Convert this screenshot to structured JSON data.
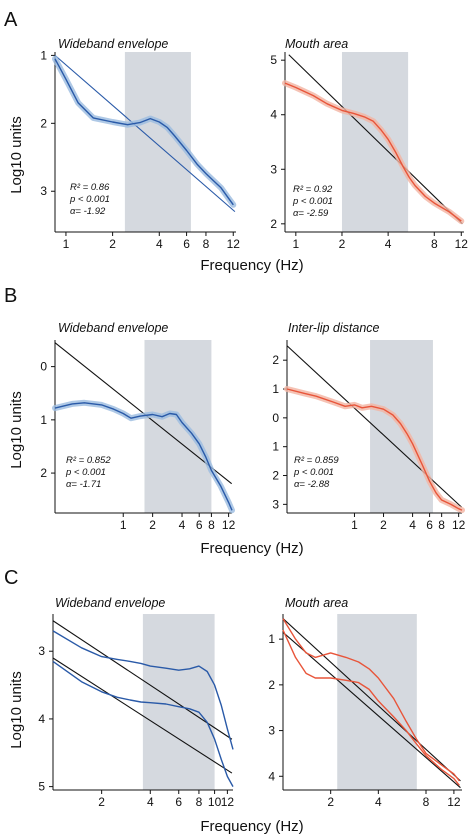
{
  "colors": {
    "blue": "#2a5aa8",
    "blue_band": "#9bbbe0",
    "red": "#e8553a",
    "red_band": "#f3b4a3",
    "fit": "#111111",
    "shade": "#d5d9df"
  },
  "xlabel": "Frequency (Hz)",
  "ylabel": "Log10 units",
  "chart_data": [
    {
      "panel": "A",
      "side": "left",
      "type": "line",
      "title": "Wideband envelope",
      "color": "blue",
      "x_log": true,
      "xlim": [
        0.85,
        12.5
      ],
      "ylim": [
        0.95,
        3.6
      ],
      "y_inverted": true,
      "xticks": [
        1,
        2,
        4,
        6,
        8,
        12
      ],
      "yticks": [
        1,
        2,
        3
      ],
      "shaded_band_hz": [
        2.4,
        6.4
      ],
      "stats": [
        "R² = 0.86",
        "p < 0.001",
        "α= -1.92"
      ],
      "fit_lines": [
        {
          "x": [
            0.85,
            12.3
          ],
          "y": [
            1.0,
            3.3
          ]
        }
      ],
      "series": [
        {
          "x": [
            0.85,
            1.0,
            1.2,
            1.5,
            2.0,
            2.5,
            3.0,
            3.5,
            4.0,
            4.5,
            5.0,
            6.0,
            7.0,
            8.0,
            9.0,
            10.0,
            11.0,
            12.0
          ],
          "y": [
            1.05,
            1.35,
            1.7,
            1.92,
            1.98,
            2.02,
            1.99,
            1.93,
            1.98,
            2.06,
            2.18,
            2.4,
            2.6,
            2.74,
            2.85,
            2.95,
            3.08,
            3.2
          ]
        }
      ]
    },
    {
      "panel": "A",
      "side": "right",
      "type": "line",
      "title": "Mouth area",
      "color": "red",
      "x_log": true,
      "xlim": [
        0.85,
        12.5
      ],
      "ylim": [
        5.15,
        1.85
      ],
      "y_inverted": false,
      "xticks": [
        1,
        2,
        4,
        8,
        12
      ],
      "yticks": [
        5,
        4,
        3,
        2
      ],
      "shaded_band_hz": [
        2.0,
        5.4
      ],
      "stats": [
        "R² = 0.92",
        "p < 0.001",
        "α= -2.59"
      ],
      "fit_lines": [
        {
          "x": [
            0.9,
            12.2
          ],
          "y": [
            5.1,
            2.0
          ]
        }
      ],
      "series": [
        {
          "x": [
            0.85,
            1.0,
            1.3,
            1.6,
            2.0,
            2.4,
            2.8,
            3.2,
            3.6,
            4.0,
            4.5,
            5.0,
            5.5,
            6.0,
            7.0,
            8.0,
            10.0,
            12.0
          ],
          "y": [
            4.58,
            4.5,
            4.35,
            4.2,
            4.08,
            4.02,
            3.96,
            3.88,
            3.72,
            3.55,
            3.3,
            3.05,
            2.85,
            2.7,
            2.5,
            2.38,
            2.22,
            2.05
          ]
        }
      ]
    },
    {
      "panel": "B",
      "side": "left",
      "type": "line",
      "title": "Wideband envelope",
      "color": "blue",
      "x_log": true,
      "xlim": [
        0.2,
        13.0
      ],
      "ylim": [
        -0.5,
        2.75
      ],
      "y_inverted": true,
      "xticks": [
        1,
        2,
        4,
        6,
        8,
        12
      ],
      "yticks": [
        0,
        1,
        2
      ],
      "shaded_band_hz": [
        1.65,
        8.0
      ],
      "stats": [
        "R² = 0.852",
        "p < 0.001",
        "α= -1.71"
      ],
      "fit_lines": [
        {
          "x": [
            0.2,
            12.9
          ],
          "y": [
            -0.45,
            2.2
          ]
        }
      ],
      "series": [
        {
          "x": [
            0.2,
            0.3,
            0.4,
            0.6,
            0.8,
            1.0,
            1.2,
            1.5,
            2.0,
            2.5,
            3.0,
            3.5,
            4.0,
            5.0,
            6.0,
            7.0,
            8.0,
            10.0,
            12.0,
            13.0
          ],
          "y": [
            0.78,
            0.7,
            0.68,
            0.72,
            0.8,
            0.88,
            0.97,
            0.93,
            0.9,
            0.94,
            0.88,
            0.9,
            1.05,
            1.25,
            1.45,
            1.7,
            1.95,
            2.25,
            2.55,
            2.7
          ]
        }
      ]
    },
    {
      "panel": "B",
      "side": "right",
      "type": "line",
      "title": "Inter-lip distance",
      "color": "red",
      "x_log": true,
      "xlim": [
        0.2,
        13.0
      ],
      "ylim": [
        -2.7,
        3.3
      ],
      "y_inverted": true,
      "xticks": [
        1,
        2,
        4,
        6,
        8,
        12
      ],
      "ytick_labels": [
        "2",
        "1",
        "0",
        "1",
        "2",
        "3"
      ],
      "yticks": [
        -2,
        -1,
        0,
        1,
        2,
        3
      ],
      "shaded_band_hz": [
        1.45,
        6.5
      ],
      "stats": [
        "R² = 0.859",
        "p < 0.001",
        "α= -2.88"
      ],
      "fit_lines": [
        {
          "x": [
            0.2,
            12.9
          ],
          "y": [
            -2.5,
            3.1
          ]
        }
      ],
      "series": [
        {
          "x": [
            0.2,
            0.3,
            0.4,
            0.6,
            0.8,
            1.0,
            1.2,
            1.5,
            2.0,
            2.5,
            3.0,
            3.5,
            4.0,
            5.0,
            6.0,
            7.0,
            8.0,
            10.0,
            12.0,
            13.0
          ],
          "y": [
            -1.0,
            -0.85,
            -0.75,
            -0.55,
            -0.4,
            -0.45,
            -0.35,
            -0.4,
            -0.3,
            -0.1,
            0.2,
            0.55,
            0.9,
            1.6,
            2.2,
            2.6,
            2.85,
            3.0,
            3.15,
            3.2
          ]
        }
      ]
    },
    {
      "panel": "C",
      "side": "left",
      "type": "line",
      "title": "Wideband envelope",
      "color": "blue",
      "x_log": true,
      "xlim": [
        1.0,
        13.0
      ],
      "ylim": [
        2.45,
        5.05
      ],
      "y_inverted": true,
      "xticks": [
        2,
        4,
        6,
        8,
        10,
        12
      ],
      "yticks": [
        3,
        4,
        5
      ],
      "shaded_band_hz": [
        3.6,
        10.0
      ],
      "stats": [],
      "fit_lines": [
        {
          "x": [
            1.0,
            12.8
          ],
          "y": [
            2.55,
            4.3
          ]
        },
        {
          "x": [
            1.0,
            12.8
          ],
          "y": [
            3.1,
            4.8
          ]
        }
      ],
      "series": [
        {
          "x": [
            1.0,
            1.5,
            2.0,
            2.5,
            3.0,
            3.5,
            4.0,
            5.0,
            6.0,
            7.0,
            8.0,
            9.0,
            10.0,
            11.0,
            12.0,
            13.0
          ],
          "y": [
            2.7,
            2.95,
            3.08,
            3.12,
            3.15,
            3.18,
            3.22,
            3.25,
            3.28,
            3.26,
            3.22,
            3.3,
            3.5,
            3.8,
            4.15,
            4.45
          ]
        },
        {
          "x": [
            1.0,
            1.5,
            2.0,
            2.5,
            3.0,
            3.5,
            4.0,
            5.0,
            6.0,
            7.0,
            8.0,
            9.0,
            10.0,
            11.0,
            12.0,
            13.0
          ],
          "y": [
            3.15,
            3.45,
            3.6,
            3.68,
            3.72,
            3.75,
            3.76,
            3.78,
            3.82,
            3.85,
            3.9,
            4.05,
            4.3,
            4.6,
            4.85,
            5.0
          ]
        }
      ]
    },
    {
      "panel": "C",
      "side": "right",
      "type": "line",
      "title": "Mouth area",
      "color": "red",
      "x_log": true,
      "xlim": [
        1.0,
        13.5
      ],
      "ylim": [
        0.45,
        4.3
      ],
      "y_inverted": true,
      "xticks": [
        2,
        4,
        8,
        12
      ],
      "yticks": [
        1,
        2,
        3,
        4
      ],
      "shaded_band_hz": [
        2.2,
        7.0
      ],
      "stats": [],
      "fit_lines": [
        {
          "x": [
            1.0,
            13.2
          ],
          "y": [
            0.55,
            4.1
          ]
        },
        {
          "x": [
            1.0,
            13.2
          ],
          "y": [
            0.85,
            4.25
          ]
        }
      ],
      "series": [
        {
          "x": [
            1.0,
            1.2,
            1.4,
            1.6,
            1.8,
            2.0,
            2.5,
            3.0,
            3.5,
            4.0,
            5.0,
            6.0,
            7.0,
            8.0,
            10.0,
            12.0,
            13.0
          ],
          "y": [
            0.55,
            1.0,
            1.3,
            1.4,
            1.35,
            1.3,
            1.4,
            1.5,
            1.65,
            1.85,
            2.3,
            2.8,
            3.2,
            3.5,
            3.75,
            3.95,
            4.1
          ]
        },
        {
          "x": [
            1.0,
            1.2,
            1.4,
            1.6,
            1.8,
            2.0,
            2.5,
            3.0,
            3.5,
            4.0,
            5.0,
            6.0,
            7.0,
            8.0,
            10.0,
            12.0,
            13.0
          ],
          "y": [
            0.8,
            1.4,
            1.75,
            1.85,
            1.85,
            1.85,
            1.9,
            1.95,
            2.1,
            2.35,
            2.7,
            3.0,
            3.3,
            3.55,
            3.85,
            4.05,
            4.2
          ]
        }
      ]
    }
  ],
  "panel_letters": [
    "A",
    "B",
    "C"
  ]
}
